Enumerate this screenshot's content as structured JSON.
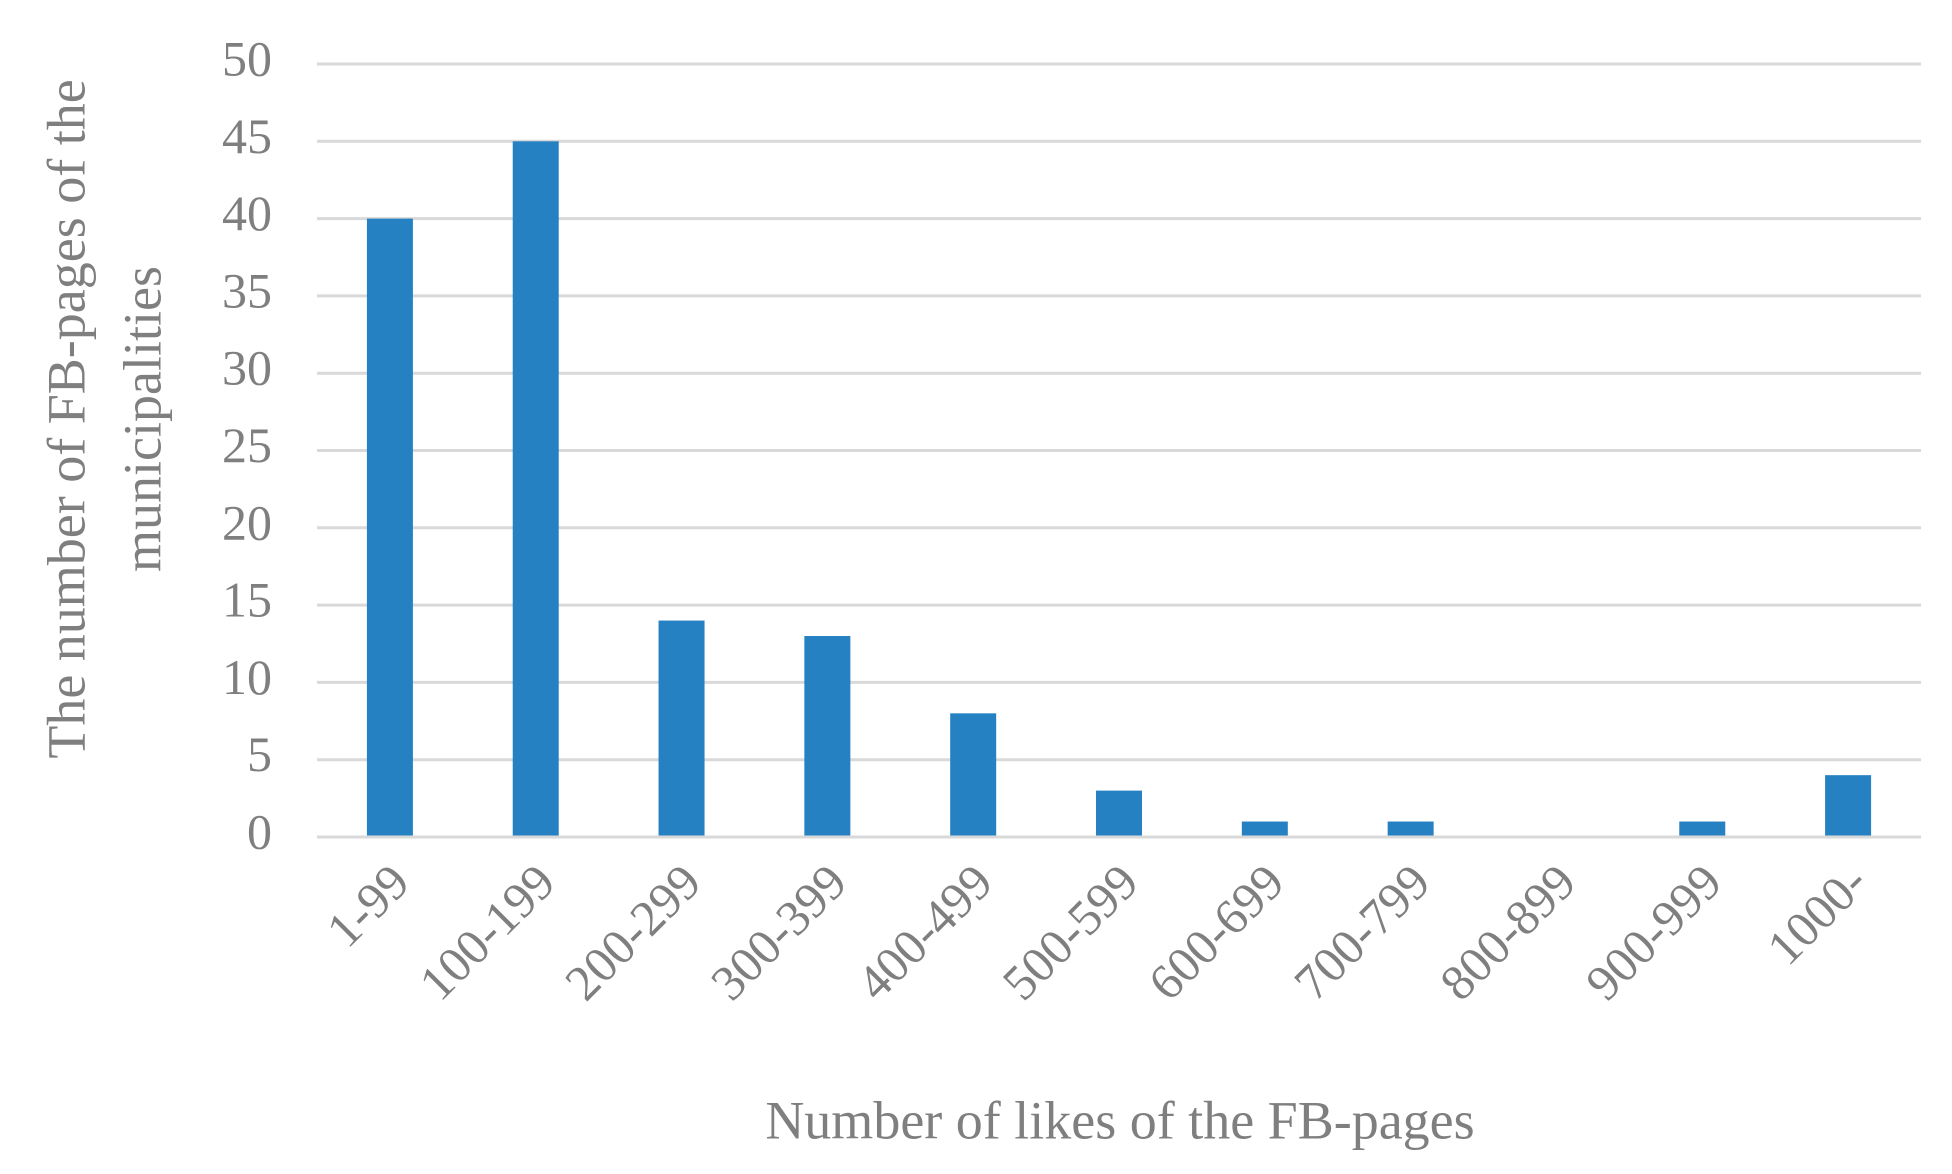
{
  "chart_data": {
    "type": "bar",
    "x_label": "Number of likes of the FB-pages",
    "y_label": [
      "The number of FB-pages of the",
      "municipalities"
    ],
    "categories": [
      "1-99",
      "100-199",
      "200-299",
      "300-399",
      "400-499",
      "500-599",
      "600-699",
      "700-799",
      "800-899",
      "900-999",
      "1000-"
    ],
    "values": [
      40,
      45,
      14,
      13,
      8,
      3,
      1,
      1,
      0,
      1,
      4
    ],
    "color": "#2681c2",
    "ylim": [
      0,
      50
    ],
    "yticks": [
      0,
      5,
      10,
      15,
      20,
      25,
      30,
      35,
      40,
      45,
      50
    ],
    "grid": true
  }
}
